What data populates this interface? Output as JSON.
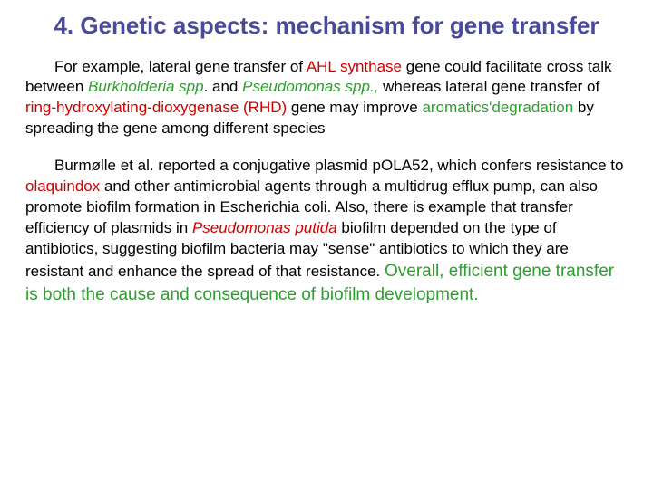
{
  "colors": {
    "title": "#4a4a9a",
    "body": "#000000",
    "red": "#cc0000",
    "green": "#2e9e2e",
    "background": "#ffffff"
  },
  "typography": {
    "font_family": "Comic Sans MS",
    "title_fontsize": 26,
    "body_fontsize": 17,
    "conclusion_fontsize": 19
  },
  "title": "4. Genetic aspects: mechanism for gene transfer",
  "p1": {
    "t1": "For example, lateral gene transfer of ",
    "ahl": "AHL synthase",
    "t2": "  gene could facilitate cross talk between ",
    "burk": "Burkholderia spp",
    "t3": ". and ",
    "pseu": "Pseudomonas spp.,",
    "t4": " whereas lateral gene transfer of ",
    "rhd": "ring-hydroxylating-dioxygenase (RHD)",
    "t5": " gene may improve ",
    "arom": "aromatics'degradation",
    "t6": " by spreading the gene among different species"
  },
  "p2": {
    "t1": "Burmølle et al. reported a conjugative plasmid pOLA52, which confers resistance to ",
    "olaq": "olaquindox",
    "t2": " and other antimicrobial agents through a multidrug efflux pump, can also promote biofilm formation in Escherichia coli. Also, there is example that transfer efficiency of plasmids in ",
    "pputida": "Pseudomonas putida",
    "t3": " biofilm depended on the type of antibiotics, suggesting biofilm bacteria may \"sense\" antibiotics to which they are resistant and enhance the spread of that resistance. ",
    "conclusion": "Overall, efficient gene transfer is both the cause and consequence of biofilm development."
  }
}
